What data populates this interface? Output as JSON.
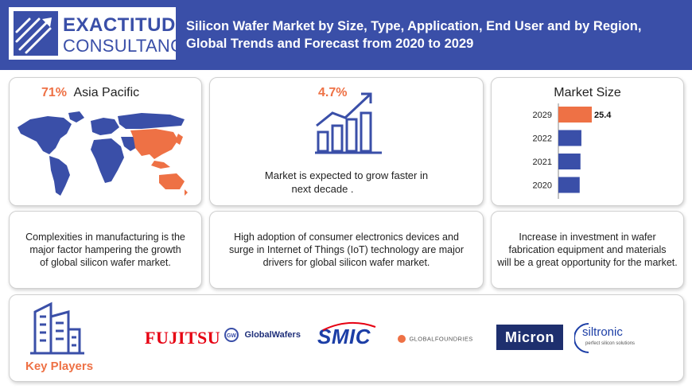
{
  "header": {
    "logo_line1": "EXACTITUDE",
    "logo_line2": "CONSULTANCY",
    "title_line1": "Silicon Wafer Market by Size, Type, Application, End User and by Region,",
    "title_line2": "Global Trends and Forecast from  2020 to 2029"
  },
  "region_card": {
    "share": "71%",
    "region": "Asia Pacific"
  },
  "growth_card": {
    "cagr": "4.7%",
    "text_line1": "Market is expected to grow faster in",
    "text_line2": "next decade ."
  },
  "chart_data": {
    "type": "bar",
    "title": "Market Size",
    "categories": [
      "2029",
      "2022",
      "2021",
      "2020"
    ],
    "values": [
      25.4,
      17.5,
      16.8,
      16.2
    ],
    "data_labels": [
      "25.4",
      "",
      "",
      ""
    ],
    "highlight_color": "#ee7145",
    "bar_color": "#3a4fa8",
    "orientation": "horizontal"
  },
  "info_cards": {
    "restraint_line1": "Complexities in manufacturing is the",
    "restraint_line2": "major factor hampering the growth",
    "restraint_line3": "of global silicon wafer market.",
    "driver_line1": "High adoption of consumer electronics devices and",
    "driver_line2": "surge in Internet of Things (IoT) technology are major",
    "driver_line3": "drivers for global silicon wafer market.",
    "opportunity_line1": "Increase in investment in wafer",
    "opportunity_line2": "fabrication equipment and materials",
    "opportunity_line3": "will be a great opportunity for the market."
  },
  "key_players": {
    "label": "Key Players",
    "logos": [
      "FUJITSU",
      "GlobalWafers",
      "SMIC",
      "GLOBALFOUNDRIES",
      "Micron",
      "siltronic",
      "perfect silicon solutions",
      "GW"
    ]
  },
  "colors": {
    "brand_blue": "#3a4fa8",
    "accent_orange": "#ee7145"
  }
}
